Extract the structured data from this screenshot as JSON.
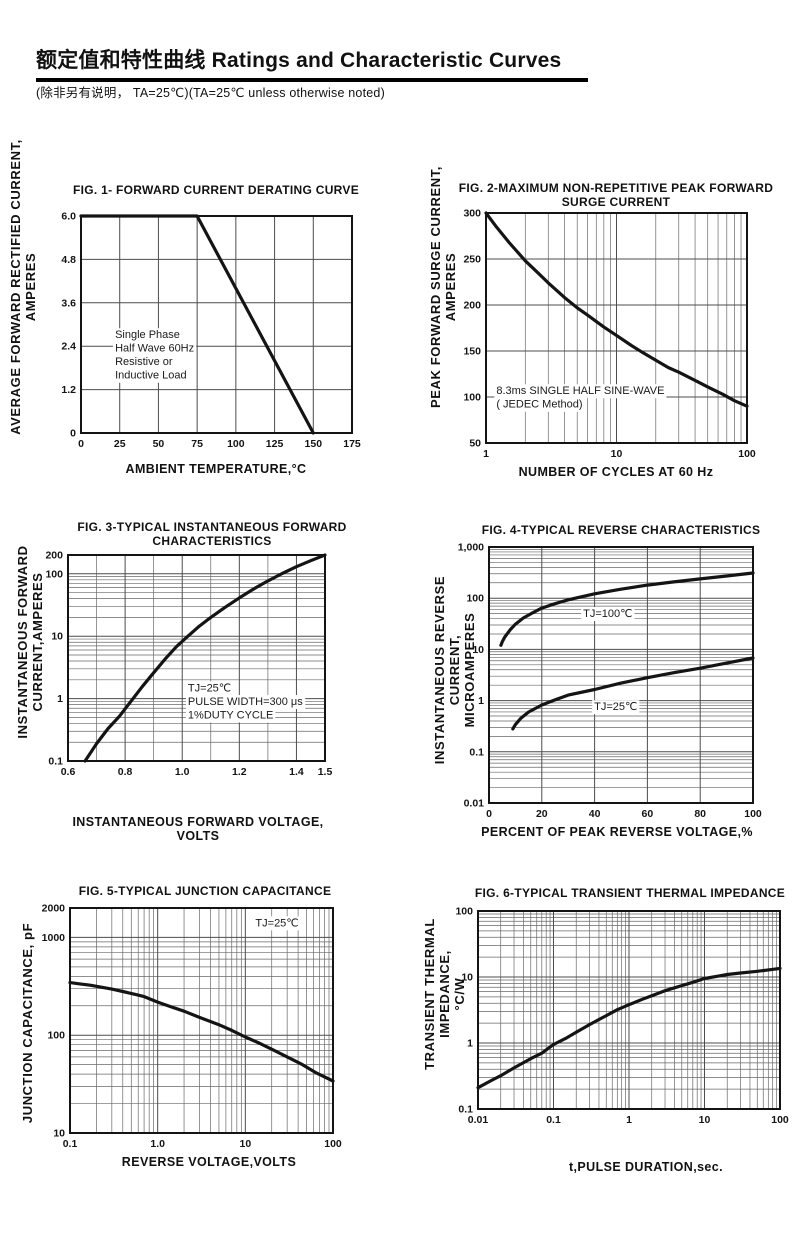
{
  "header": {
    "title": "额定值和特性曲线 Ratings and Characteristic Curves",
    "subtitle": "(除非另有说明， TA=25℃)(TA=25℃  unless otherwise noted)"
  },
  "colors": {
    "ink": "#141414",
    "grid": "#4d4d4d",
    "grid_minor": "#686868",
    "background": "#ffffff"
  },
  "chart_data": [
    {
      "type": "line",
      "title": "FIG. 1- FORWARD CURRENT DERATING CURVE",
      "xlabel": "AMBIENT TEMPERATURE,°C",
      "ylabel": "AVERAGE FORWARD RECTIFIED CURRENT,\nAMPERES",
      "x": {
        "scale": "linear",
        "min": 0,
        "max": 175,
        "ticks": [
          0,
          25,
          50,
          75,
          100,
          125,
          150,
          175
        ],
        "labels": [
          "0",
          "25",
          "50",
          "75",
          "100",
          "125",
          "150",
          "175"
        ],
        "minor": null
      },
      "y": {
        "scale": "linear",
        "min": 0,
        "max": 6,
        "ticks": [
          0,
          1.2,
          2.4,
          3.6,
          4.8,
          6
        ],
        "labels": [
          "0",
          "1.2",
          "2.4",
          "3.6",
          "4.8",
          "6.0"
        ],
        "minor": null
      },
      "series": [
        {
          "name": "forward-current-derating",
          "points": [
            [
              0,
              6
            ],
            [
              75,
              6
            ],
            [
              150,
              0
            ]
          ]
        }
      ],
      "annotations": [
        {
          "text": "Single Phase\nHalf Wave 60Hz\nResistive or\nInductive Load",
          "x": 22,
          "y": 2.62,
          "anchor": "start"
        }
      ]
    },
    {
      "type": "line",
      "title": "FIG. 2-MAXIMUM NON-REPETITIVE PEAK FORWARD\nSURGE CURRENT",
      "xlabel": "NUMBER OF CYCLES AT 60 Hz",
      "ylabel": "PEAK  FORWARD SURGE CURRENT,\nAMPERES",
      "x": {
        "scale": "log",
        "min": 1,
        "max": 100,
        "ticks": [
          1,
          10,
          100
        ],
        "labels": [
          "1",
          "10",
          "100"
        ],
        "minor": "log"
      },
      "y": {
        "scale": "linear",
        "min": 50,
        "max": 300,
        "ticks": [
          50,
          100,
          150,
          200,
          250,
          300
        ],
        "labels": [
          "50",
          "100",
          "150",
          "200",
          "250",
          "300"
        ],
        "minor": null
      },
      "series": [
        {
          "name": "peak-surge-current",
          "points": [
            [
              1,
              300
            ],
            [
              1.2,
              285
            ],
            [
              1.5,
              268
            ],
            [
              2,
              248
            ],
            [
              2.5,
              235
            ],
            [
              3,
              224
            ],
            [
              4,
              208
            ],
            [
              5,
              197
            ],
            [
              6,
              189
            ],
            [
              8,
              176
            ],
            [
              10,
              167
            ],
            [
              13,
              156
            ],
            [
              16,
              148
            ],
            [
              20,
              140
            ],
            [
              25,
              132
            ],
            [
              30,
              127
            ],
            [
              40,
              118
            ],
            [
              50,
              111
            ],
            [
              65,
              103
            ],
            [
              80,
              96
            ],
            [
              100,
              90
            ]
          ]
        }
      ],
      "annotations": [
        {
          "text": "8.3ms SINGLE HALF SINE-WAVE\n( JEDEC Method)",
          "x": 1.2,
          "y": 103,
          "anchor": "start"
        }
      ]
    },
    {
      "type": "line",
      "title": "FIG. 3-TYPICAL INSTANTANEOUS FORWARD\nCHARACTERISTICS",
      "xlabel": "INSTANTANEOUS FORWARD VOLTAGE,\nVOLTS",
      "ylabel": "INSTANTANEOUS FORWARD\nCURRENT,AMPERES",
      "x": {
        "scale": "linear",
        "min": 0.6,
        "max": 1.5,
        "ticks": [
          0.6,
          0.8,
          1.0,
          1.2,
          1.4,
          1.5
        ],
        "labels": [
          "0.6",
          "0.8",
          "1.0",
          "1.2",
          "1.4",
          "1.5"
        ],
        "minor": 0.1
      },
      "y": {
        "scale": "log",
        "min": 0.1,
        "max": 200,
        "ticks": [
          200,
          100,
          10,
          1,
          0.1
        ],
        "labels": [
          "200",
          "100",
          "10",
          "1",
          "0.1"
        ],
        "minor": "log"
      },
      "series": [
        {
          "name": "instantaneous-forward-current",
          "points": [
            [
              0.66,
              0.1
            ],
            [
              0.7,
              0.19
            ],
            [
              0.74,
              0.33
            ],
            [
              0.78,
              0.52
            ],
            [
              0.82,
              0.9
            ],
            [
              0.86,
              1.55
            ],
            [
              0.9,
              2.6
            ],
            [
              0.94,
              4.3
            ],
            [
              0.98,
              6.8
            ],
            [
              1.02,
              10
            ],
            [
              1.06,
              14.5
            ],
            [
              1.1,
              20
            ],
            [
              1.15,
              29
            ],
            [
              1.2,
              41
            ],
            [
              1.25,
              57
            ],
            [
              1.3,
              77
            ],
            [
              1.35,
              101
            ],
            [
              1.4,
              130
            ],
            [
              1.45,
              162
            ],
            [
              1.5,
              200
            ]
          ]
        }
      ],
      "annotations": [
        {
          "text": "TJ=25℃\nPULSE WIDTH=300 μs\n1%DUTY CYCLE",
          "x": 1.02,
          "y": 1.3,
          "anchor": "start"
        }
      ]
    },
    {
      "type": "line",
      "title": "FIG. 4-TYPICAL REVERSE CHARACTERISTICS",
      "xlabel": "PERCENT OF PEAK REVERSE VOLTAGE,%",
      "ylabel": "INSTANTANEOUS REVERSE CURRENT,\nMICROAMPERES",
      "x": {
        "scale": "linear",
        "min": 0,
        "max": 100,
        "ticks": [
          0,
          20,
          40,
          60,
          80,
          100
        ],
        "labels": [
          "0",
          "20",
          "40",
          "60",
          "80",
          "100"
        ],
        "minor": null
      },
      "y": {
        "scale": "log",
        "min": 0.01,
        "max": 1000,
        "ticks": [
          1000,
          100,
          10,
          1,
          0.1,
          0.01
        ],
        "labels": [
          "1,000",
          "100",
          "10",
          "1",
          "0.1",
          "0.01"
        ],
        "minor": "log"
      },
      "series": [
        {
          "name": "TJ=100℃",
          "points": [
            [
              4.5,
              12
            ],
            [
              5,
              14
            ],
            [
              6,
              17.5
            ],
            [
              8,
              24
            ],
            [
              10,
              31
            ],
            [
              13,
              41
            ],
            [
              16,
              50
            ],
            [
              20,
              64
            ],
            [
              25,
              78
            ],
            [
              30,
              93
            ],
            [
              40,
              122
            ],
            [
              50,
              150
            ],
            [
              60,
              180
            ],
            [
              70,
              208
            ],
            [
              80,
              238
            ],
            [
              90,
              272
            ],
            [
              100,
              310
            ]
          ]
        },
        {
          "name": "TJ=25℃",
          "points": [
            [
              9,
              0.28
            ],
            [
              10,
              0.34
            ],
            [
              12,
              0.45
            ],
            [
              15,
              0.6
            ],
            [
              20,
              0.82
            ],
            [
              25,
              1.03
            ],
            [
              30,
              1.28
            ],
            [
              40,
              1.65
            ],
            [
              50,
              2.2
            ],
            [
              60,
              2.8
            ],
            [
              70,
              3.5
            ],
            [
              80,
              4.3
            ],
            [
              90,
              5.4
            ],
            [
              100,
              6.8
            ]
          ]
        }
      ],
      "annotations": [
        {
          "text": "TJ=100℃",
          "x": 45,
          "y": 43,
          "anchor": "middle"
        },
        {
          "text": "TJ=25℃",
          "x": 48,
          "y": 0.65,
          "anchor": "middle"
        }
      ]
    },
    {
      "type": "line",
      "title": "FIG. 5-TYPICAL JUNCTION CAPACITANCE",
      "xlabel": "REVERSE VOLTAGE,VOLTS",
      "ylabel": "JUNCTION CAPACITANCE, pF",
      "x": {
        "scale": "log",
        "min": 0.1,
        "max": 100,
        "ticks": [
          0.1,
          1,
          10,
          100
        ],
        "labels": [
          "0.1",
          "1.0",
          "10",
          "100"
        ],
        "minor": "log"
      },
      "y": {
        "scale": "log",
        "min": 10,
        "max": 2000,
        "ticks": [
          2000,
          1000,
          100,
          10
        ],
        "labels": [
          "2000",
          "1000",
          "100",
          "10"
        ],
        "minor": "log"
      },
      "series": [
        {
          "name": "junction-capacitance",
          "points": [
            [
              0.1,
              345
            ],
            [
              0.13,
              335
            ],
            [
              0.17,
              325
            ],
            [
              0.22,
              312
            ],
            [
              0.3,
              296
            ],
            [
              0.4,
              280
            ],
            [
              0.55,
              262
            ],
            [
              0.7,
              248
            ],
            [
              1,
              218
            ],
            [
              1.4,
              196
            ],
            [
              2,
              176
            ],
            [
              3,
              152
            ],
            [
              4,
              138
            ],
            [
              5,
              128
            ],
            [
              7,
              112
            ],
            [
              10,
              96
            ],
            [
              14,
              84
            ],
            [
              20,
              72
            ],
            [
              30,
              60
            ],
            [
              45,
              50
            ],
            [
              65,
              41
            ],
            [
              100,
              34
            ]
          ]
        }
      ],
      "annotations": [
        {
          "text": "TJ=25℃",
          "x": 23,
          "y": 1300,
          "anchor": "middle"
        }
      ]
    },
    {
      "type": "line",
      "title": "FIG. 6-TYPICAL TRANSIENT THERMAL IMPEDANCE",
      "xlabel": "t,PULSE DURATION,sec.",
      "ylabel": "TRANSIENT THERMAL IMPEDANCE,\n°C/W",
      "x": {
        "scale": "log",
        "min": 0.01,
        "max": 100,
        "ticks": [
          0.01,
          0.1,
          1,
          10,
          100
        ],
        "labels": [
          "0.01",
          "0.1",
          "1",
          "10",
          "100"
        ],
        "minor": "log"
      },
      "y": {
        "scale": "log",
        "min": 0.1,
        "max": 100,
        "ticks": [
          100,
          10,
          1,
          0.1
        ],
        "labels": [
          "100",
          "10",
          "1",
          "0.1"
        ],
        "minor": "log"
      },
      "series": [
        {
          "name": "transient-thermal-impedance",
          "points": [
            [
              0.01,
              0.21
            ],
            [
              0.015,
              0.27
            ],
            [
              0.02,
              0.32
            ],
            [
              0.03,
              0.42
            ],
            [
              0.05,
              0.58
            ],
            [
              0.07,
              0.7
            ],
            [
              0.1,
              0.95
            ],
            [
              0.15,
              1.2
            ],
            [
              0.2,
              1.45
            ],
            [
              0.3,
              1.9
            ],
            [
              0.5,
              2.6
            ],
            [
              0.7,
              3.2
            ],
            [
              1,
              3.8
            ],
            [
              1.5,
              4.6
            ],
            [
              2,
              5.2
            ],
            [
              3,
              6.2
            ],
            [
              5,
              7.4
            ],
            [
              7,
              8.3
            ],
            [
              10,
              9.5
            ],
            [
              15,
              10.3
            ],
            [
              20,
              10.9
            ],
            [
              30,
              11.5
            ],
            [
              50,
              12.2
            ],
            [
              70,
              12.8
            ],
            [
              100,
              13.5
            ]
          ]
        }
      ],
      "annotations": []
    }
  ]
}
